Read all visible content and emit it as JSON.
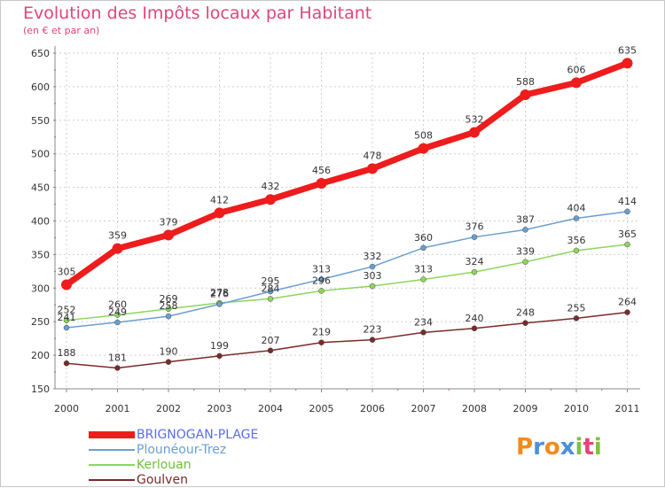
{
  "header": {
    "title": "Evolution des Impôts locaux par Habitant",
    "subtitle": "(en € et par an)"
  },
  "logo": {
    "letters": [
      "P",
      "r",
      "o",
      "x",
      "i",
      "t",
      "i"
    ],
    "colors": [
      "#f08c1e",
      "#4a90d9",
      "#f08c1e",
      "#4a90d9",
      "#7cc242",
      "#e0457b",
      "#7cc242"
    ]
  },
  "chart_data": {
    "type": "line",
    "title": "Evolution des Impôts locaux par Habitant",
    "subtitle": "(en € et par an)",
    "xlabel": "",
    "ylabel": "",
    "x": [
      "2000",
      "2001",
      "2002",
      "2003",
      "2004",
      "2005",
      "2006",
      "2007",
      "2008",
      "2009",
      "2010",
      "2011"
    ],
    "ylim": [
      150,
      650
    ],
    "yticks": [
      150,
      200,
      250,
      300,
      350,
      400,
      450,
      500,
      550,
      600,
      650
    ],
    "grid": true,
    "legend_position": "bottom-left",
    "series": [
      {
        "name": "BRIGNOGAN-PLAGE",
        "color": "#ee1c1c",
        "label_color": "#5b6bf0",
        "values": [
          305,
          359,
          379,
          412,
          432,
          456,
          478,
          508,
          532,
          588,
          606,
          635
        ]
      },
      {
        "name": "Plounéour-Trez",
        "color": "#6a9fd0",
        "label_color": "#6a9fd0",
        "values": [
          241,
          249,
          258,
          276,
          295,
          313,
          332,
          360,
          376,
          387,
          404,
          414
        ]
      },
      {
        "name": "Kerlouan",
        "color": "#8ed65a",
        "label_color": "#6fbf3a",
        "values": [
          252,
          260,
          269,
          278,
          284,
          296,
          303,
          313,
          324,
          339,
          356,
          365
        ]
      },
      {
        "name": "Goulven",
        "color": "#7a2a2a",
        "label_color": "#7a2a2a",
        "values": [
          188,
          181,
          190,
          199,
          207,
          219,
          223,
          234,
          240,
          248,
          255,
          264
        ]
      }
    ]
  }
}
